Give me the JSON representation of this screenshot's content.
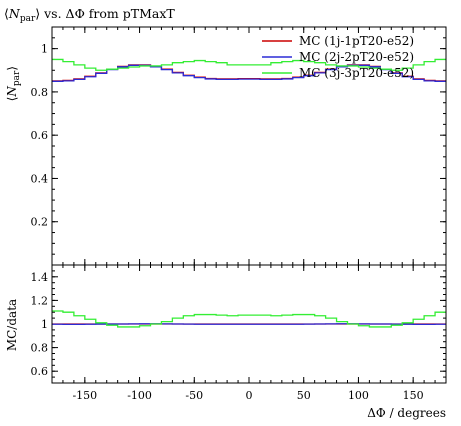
{
  "chart_data": [
    {
      "type": "line",
      "title": "⟨N_par⟩ vs. ΔΦ from pTMaxT",
      "title_parts": {
        "pre": "⟨",
        "var": "N",
        "sub": "par",
        "post": "⟩ vs. ΔΦ from pTMaxT"
      },
      "ylabel": "⟨N_par⟩",
      "xlabel": "",
      "xlim": [
        -180,
        180
      ],
      "ylim": [
        0,
        1.1
      ],
      "yticks": [
        {
          "value": 0.2,
          "label": "0.2"
        },
        {
          "value": 0.4,
          "label": "0.4"
        },
        {
          "value": 0.6,
          "label": "0.6"
        },
        {
          "value": 0.8,
          "label": "0.8"
        },
        {
          "value": 1.0,
          "label": "1"
        }
      ],
      "grid": false,
      "legend_position": "top-right",
      "x": [
        -175,
        -165,
        -155,
        -145,
        -135,
        -125,
        -115,
        -105,
        -95,
        -85,
        -75,
        -65,
        -55,
        -45,
        -35,
        -25,
        -15,
        -5,
        5,
        15,
        25,
        35,
        45,
        55,
        65,
        75,
        85,
        95,
        105,
        115,
        125,
        135,
        145,
        155,
        165,
        175
      ],
      "series": [
        {
          "name": "MC (1j-1pT20-e52)",
          "color": "#cc0000",
          "values": [
            0.851,
            0.853,
            0.86,
            0.872,
            0.888,
            0.905,
            0.918,
            0.925,
            0.925,
            0.918,
            0.905,
            0.89,
            0.877,
            0.868,
            0.862,
            0.86,
            0.86,
            0.861,
            0.861,
            0.86,
            0.86,
            0.862,
            0.868,
            0.877,
            0.89,
            0.905,
            0.918,
            0.925,
            0.925,
            0.918,
            0.905,
            0.888,
            0.872,
            0.86,
            0.853,
            0.851
          ]
        },
        {
          "name": "MC (2j-2pT20-e52)",
          "color": "#2b2bd6",
          "values": [
            0.849,
            0.851,
            0.858,
            0.87,
            0.886,
            0.903,
            0.916,
            0.923,
            0.923,
            0.916,
            0.903,
            0.888,
            0.875,
            0.866,
            0.86,
            0.858,
            0.858,
            0.859,
            0.859,
            0.858,
            0.858,
            0.86,
            0.866,
            0.875,
            0.888,
            0.903,
            0.916,
            0.923,
            0.923,
            0.916,
            0.903,
            0.886,
            0.87,
            0.858,
            0.851,
            0.849
          ]
        },
        {
          "name": "MC (3j-3pT20-e52)",
          "color": "#33ee33",
          "values": [
            0.95,
            0.94,
            0.925,
            0.91,
            0.9,
            0.905,
            0.91,
            0.915,
            0.92,
            0.92,
            0.925,
            0.935,
            0.94,
            0.945,
            0.94,
            0.935,
            0.925,
            0.925,
            0.925,
            0.925,
            0.935,
            0.94,
            0.945,
            0.94,
            0.935,
            0.925,
            0.92,
            0.92,
            0.915,
            0.91,
            0.905,
            0.9,
            0.91,
            0.925,
            0.94,
            0.95
          ]
        }
      ]
    },
    {
      "type": "line",
      "title": "",
      "xlabel": "ΔΦ / degrees",
      "ylabel": "MC/data",
      "xlim": [
        -180,
        180
      ],
      "ylim": [
        0.5,
        1.5
      ],
      "xticks": [
        {
          "value": -150,
          "label": "-150"
        },
        {
          "value": -100,
          "label": "-100"
        },
        {
          "value": -50,
          "label": "-50"
        },
        {
          "value": 0,
          "label": "0"
        },
        {
          "value": 50,
          "label": "50"
        },
        {
          "value": 100,
          "label": "100"
        },
        {
          "value": 150,
          "label": "150"
        }
      ],
      "yticks": [
        {
          "value": 0.6,
          "label": "0.6"
        },
        {
          "value": 0.8,
          "label": "0.8"
        },
        {
          "value": 1.0,
          "label": "1"
        },
        {
          "value": 1.2,
          "label": "1.2"
        },
        {
          "value": 1.4,
          "label": "1.4"
        }
      ],
      "grid": false,
      "x": [
        -175,
        -165,
        -155,
        -145,
        -135,
        -125,
        -115,
        -105,
        -95,
        -85,
        -75,
        -65,
        -55,
        -45,
        -35,
        -25,
        -15,
        -5,
        5,
        15,
        25,
        35,
        45,
        55,
        65,
        75,
        85,
        95,
        105,
        115,
        125,
        135,
        145,
        155,
        165,
        175
      ],
      "series": [
        {
          "name": "MC (1j-1pT20-e52)",
          "color": "#cc0000",
          "values": [
            1.0,
            1.0,
            1.0,
            1.0,
            1.0,
            1.0,
            1.0,
            1.0,
            1.0,
            1.0,
            1.0,
            1.0,
            1.0,
            1.0,
            1.0,
            1.0,
            1.0,
            1.0,
            1.0,
            1.0,
            1.0,
            1.0,
            1.0,
            1.0,
            1.0,
            1.0,
            1.0,
            1.0,
            1.0,
            1.0,
            1.0,
            1.0,
            1.0,
            1.0,
            1.0,
            1.0
          ]
        },
        {
          "name": "MC (2j-2pT20-e52)",
          "color": "#2b2bd6",
          "values": [
            0.998,
            0.997,
            0.997,
            0.998,
            0.999,
            1.0,
            1.0,
            1.001,
            1.002,
            1.002,
            1.001,
            1.0,
            0.999,
            0.998,
            0.998,
            0.998,
            0.998,
            0.998,
            0.998,
            0.998,
            0.998,
            0.998,
            0.998,
            0.999,
            1.0,
            1.001,
            1.002,
            1.002,
            1.001,
            1.0,
            1.0,
            0.999,
            0.998,
            0.997,
            0.997,
            0.998
          ]
        },
        {
          "name": "MC (3j-3pT20-e52)",
          "color": "#33ee33",
          "values": [
            1.11,
            1.1,
            1.07,
            1.04,
            1.01,
            0.99,
            0.975,
            0.975,
            0.985,
            1.0,
            1.02,
            1.05,
            1.07,
            1.08,
            1.08,
            1.075,
            1.07,
            1.075,
            1.075,
            1.075,
            1.07,
            1.075,
            1.08,
            1.08,
            1.07,
            1.05,
            1.02,
            1.0,
            0.985,
            0.975,
            0.975,
            0.99,
            1.01,
            1.04,
            1.07,
            1.1
          ]
        }
      ]
    }
  ]
}
